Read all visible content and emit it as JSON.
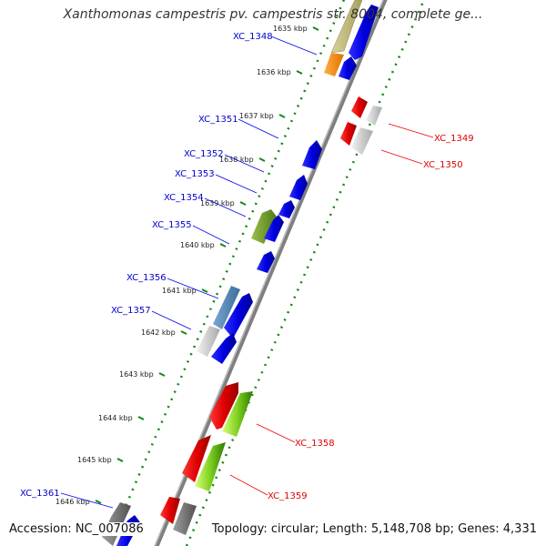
{
  "title": "Xanthomonas campestris pv. campestris str. 8004, complete ge...",
  "accession": "Accession: NC_007086",
  "topology": "Topology: circular; Length: 5,148,708 bp; Genes: 4,331",
  "colors": {
    "forward": "#0000ee",
    "reverse": "#ee0000",
    "backbone": "#7f7f7f",
    "ticks": "#118811",
    "forward_label": "#0000cc",
    "reverse_label": "#dd0000",
    "tick_label": "#222222"
  },
  "ticks": [
    {
      "label": "1635 kbp"
    },
    {
      "label": "1636 kbp"
    },
    {
      "label": "1637 kbp"
    },
    {
      "label": "1638 kbp"
    },
    {
      "label": "1639 kbp"
    },
    {
      "label": "1640 kbp"
    },
    {
      "label": "1641 kbp"
    },
    {
      "label": "1642 kbp"
    },
    {
      "label": "1643 kbp"
    },
    {
      "label": "1644 kbp"
    },
    {
      "label": "1645 kbp"
    },
    {
      "label": "1646 kbp"
    }
  ],
  "forward_labels": [
    {
      "label": "XC_1348"
    },
    {
      "label": "XC_1351"
    },
    {
      "label": "XC_1352"
    },
    {
      "label": "XC_1353"
    },
    {
      "label": "XC_1354"
    },
    {
      "label": "XC_1355"
    },
    {
      "label": "XC_1356"
    },
    {
      "label": "XC_1357"
    },
    {
      "label": "XC_1361"
    }
  ],
  "reverse_labels": [
    {
      "label": "XC_1349"
    },
    {
      "label": "XC_1350"
    },
    {
      "label": "XC_1358"
    },
    {
      "label": "XC_1359"
    }
  ]
}
